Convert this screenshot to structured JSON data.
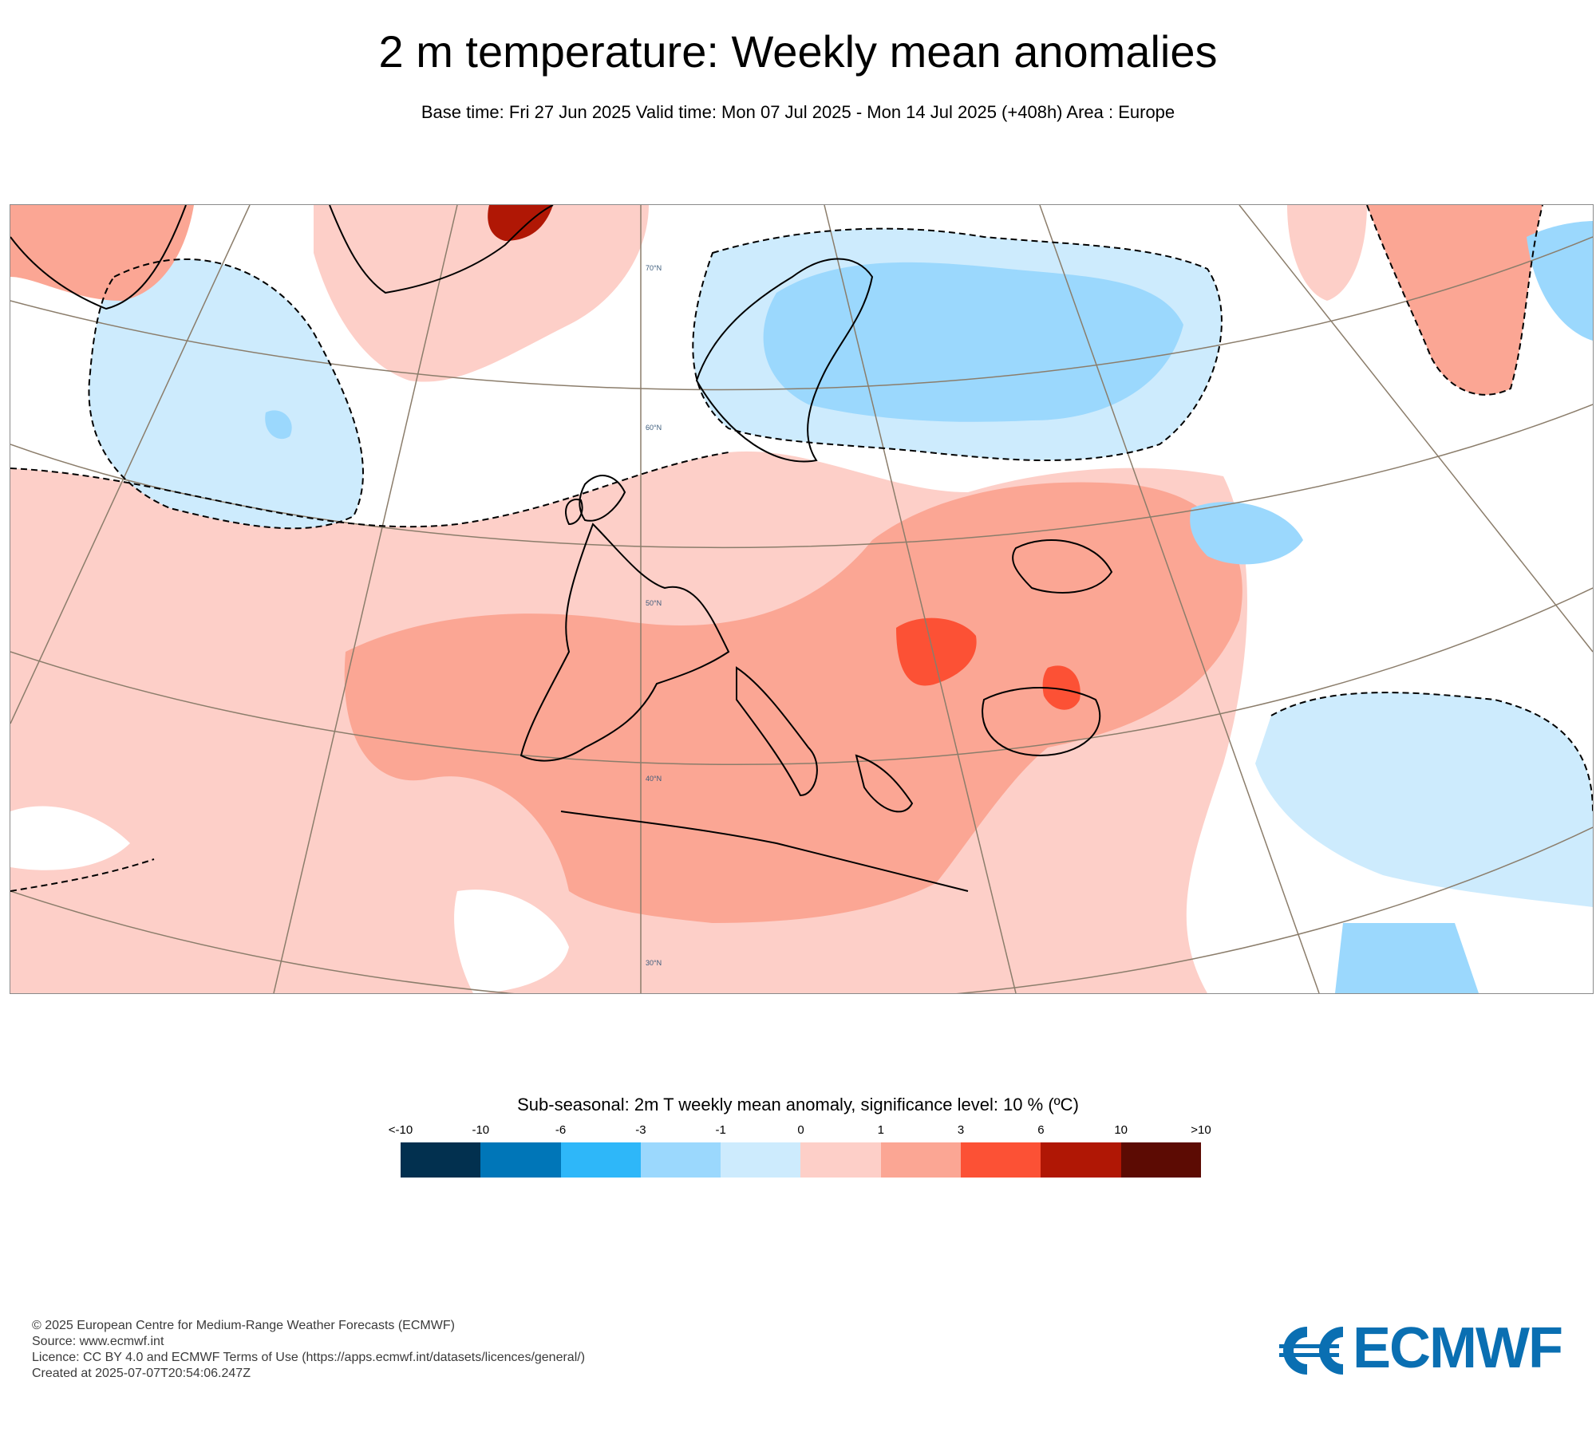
{
  "header": {
    "title": "2 m temperature: Weekly mean anomalies",
    "subtitle": "Base time: Fri 27 Jun 2025 Valid time: Mon 07 Jul 2025 - Mon 14 Jul 2025 (+408h) Area : Europe"
  },
  "map": {
    "lat_labels": [
      "70°N",
      "60°N",
      "50°N",
      "40°N",
      "30°N"
    ],
    "colors": {
      "land_outline": "#000000",
      "graticule": "#8b7d6b",
      "significance_contour": "#000000"
    }
  },
  "legend": {
    "title": "Sub-seasonal: 2m T weekly mean anomaly, significance level: 10 % (ºC)",
    "labels": [
      "<-10",
      "-10",
      "-6",
      "-3",
      "-1",
      "0",
      "1",
      "3",
      "6",
      "10",
      ">10"
    ],
    "colors": [
      "#02304f",
      "#0076b8",
      "#2eb7f9",
      "#9bd8fd",
      "#cdebfd",
      "#fdcfc8",
      "#fba694",
      "#fc5135",
      "#b01705",
      "#5c0b03"
    ]
  },
  "footer": {
    "line1": "© 2025 European Centre for Medium-Range Weather Forecasts (ECMWF)",
    "line2": "Source: www.ecmwf.int",
    "line3": "Licence: CC BY 4.0 and ECMWF Terms of Use (https://apps.ecmwf.int/datasets/licences/general/)",
    "line4": "Created at 2025-07-07T20:54:06.247Z"
  },
  "logo": {
    "text": "ECMWF",
    "color": "#0a6fb2"
  }
}
